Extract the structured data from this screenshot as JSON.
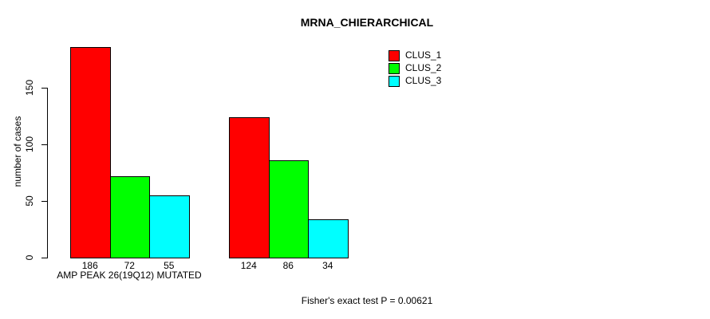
{
  "chart_data": {
    "type": "bar",
    "title": "MRNA_CHIERARCHICAL",
    "ylabel": "number of cases",
    "xlabel": "AMP PEAK 26(19Q12) MUTATED",
    "footnote": "Fisher's exact test P = 0.00621",
    "categories": [
      "AMP PEAK 26(19Q12) MUTATED",
      ""
    ],
    "series": [
      {
        "name": "CLUS_1",
        "color": "#ff0000",
        "values": [
          186,
          124
        ]
      },
      {
        "name": "CLUS_2",
        "color": "#00ff00",
        "values": [
          72,
          86
        ]
      },
      {
        "name": "CLUS_3",
        "color": "#00ffff",
        "values": [
          55,
          34
        ]
      }
    ],
    "bar_labels": [
      [
        186,
        72,
        55
      ],
      [
        124,
        86,
        34
      ]
    ],
    "yticks": [
      0,
      50,
      100,
      150
    ],
    "ylim": [
      0,
      150
    ],
    "legend": {
      "position": "top-right",
      "entries": [
        "CLUS_1",
        "CLUS_2",
        "CLUS_3"
      ]
    },
    "grid": false,
    "axis_color": "#000000",
    "background": "#ffffff"
  }
}
